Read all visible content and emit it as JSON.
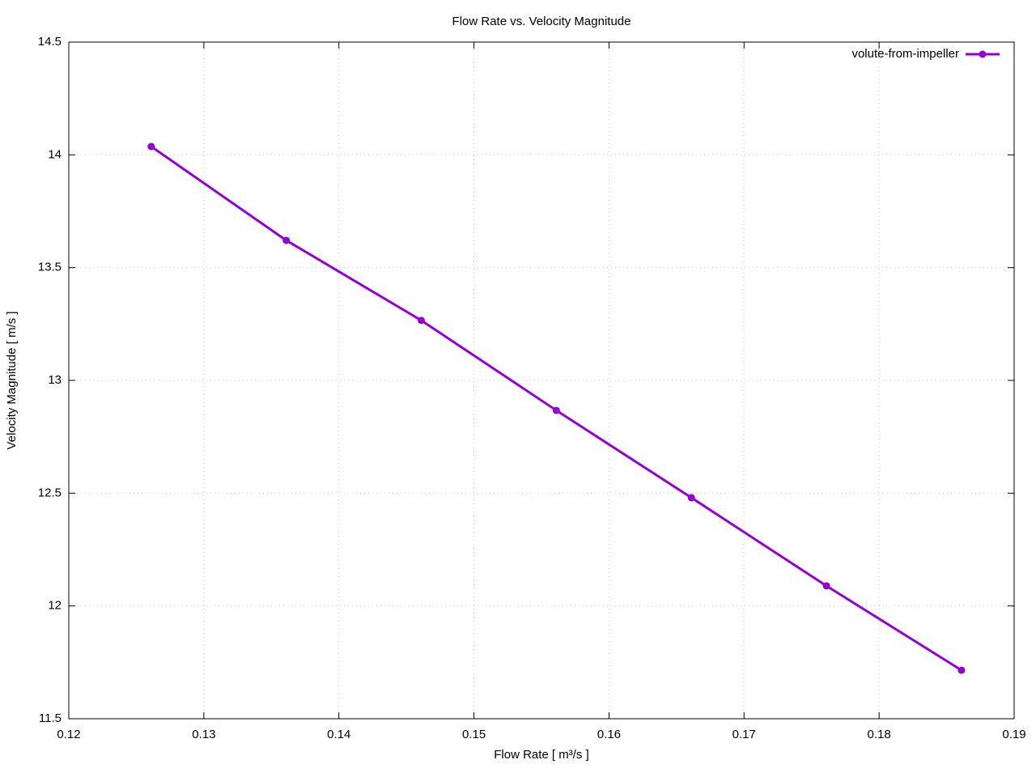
{
  "chart_data": {
    "type": "line",
    "title": "Flow Rate vs. Velocity Magnitude",
    "xlabel": "Flow Rate [ m³/s ]",
    "ylabel": "Velocity Magnitude [ m/s ]",
    "x": [
      0.1261,
      0.1361,
      0.1461,
      0.1561,
      0.1661,
      0.1761,
      0.1861
    ],
    "series": [
      {
        "name": "volute-from-impeller",
        "color": "#9400d3",
        "values": [
          14.037,
          13.621,
          13.266,
          12.867,
          12.48,
          12.089,
          11.715
        ]
      }
    ],
    "xlim": [
      0.12,
      0.19
    ],
    "xticks": [
      0.12,
      0.13,
      0.14,
      0.15,
      0.16,
      0.17,
      0.18,
      0.19
    ],
    "ylim": [
      11.5,
      14.5
    ],
    "yticks": [
      11.5,
      12,
      12.5,
      13,
      13.5,
      14,
      14.5
    ],
    "grid": true,
    "legend": "top-right"
  }
}
